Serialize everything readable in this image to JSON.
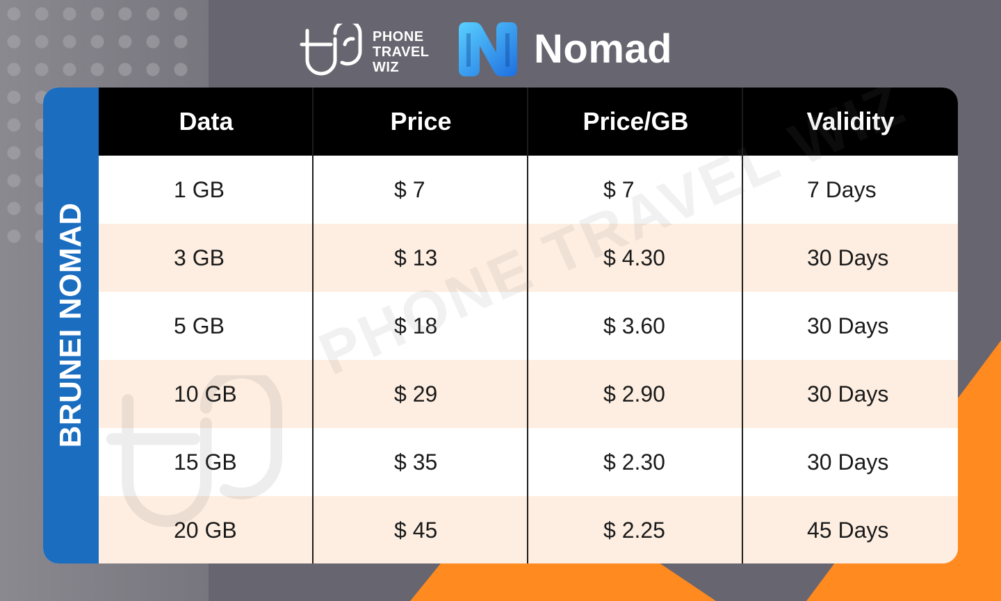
{
  "brand": {
    "ptw_lines": [
      "PHONE",
      "TRAVEL",
      "WIZ"
    ],
    "provider": "Nomad",
    "logo_icon": "ptw-logo-icon",
    "provider_icon": "nomad-logo-icon"
  },
  "sidebar": {
    "label": "BRUNEI NOMAD"
  },
  "table": {
    "headers": [
      "Data",
      "Price",
      "Price/GB",
      "Validity"
    ],
    "rows": [
      [
        "1 GB",
        "$ 7",
        "$ 7",
        "7 Days"
      ],
      [
        "3 GB",
        "$ 13",
        "$ 4.30",
        "30 Days"
      ],
      [
        "5 GB",
        "$ 18",
        "$ 3.60",
        "30 Days"
      ],
      [
        "10 GB",
        "$ 29",
        "$ 2.90",
        "30 Days"
      ],
      [
        "15 GB",
        "$ 35",
        "$ 2.30",
        "30 Days"
      ],
      [
        "20 GB",
        "$ 45",
        "$ 2.25",
        "45 Days"
      ]
    ]
  },
  "watermark": "PHONE TRAVEL WIZ",
  "colors": {
    "background": "#67656f",
    "sidebar": "#1a6dbf",
    "header_bg": "#000000",
    "row_odd": "#ffffff",
    "row_even": "#fdeee1",
    "accent_orange": "#ff8a1f"
  }
}
